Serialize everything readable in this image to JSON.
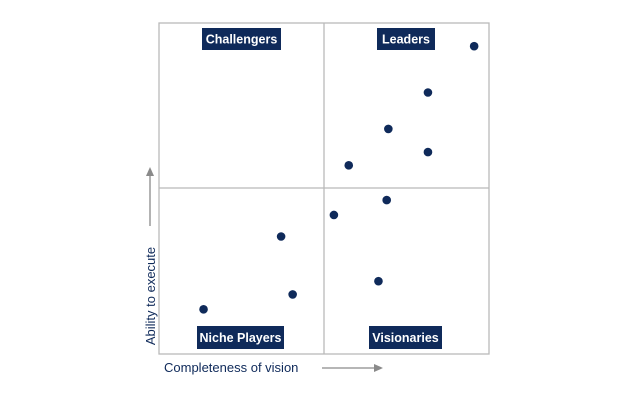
{
  "colors": {
    "navy": "#0f2a5a",
    "grid": "#b9b9b9",
    "arrow": "#8a8a8a",
    "label_text": "#ffffff"
  },
  "chart_data": {
    "type": "scatter",
    "title": "",
    "xlabel": "Completeness of vision",
    "ylabel": "Ability to execute",
    "xlim": [
      0,
      1
    ],
    "ylim": [
      0,
      1
    ],
    "grid": "2x2 quadrants",
    "quadrants": [
      {
        "name": "Challengers",
        "position": "top-left"
      },
      {
        "name": "Leaders",
        "position": "top-right"
      },
      {
        "name": "Niche Players",
        "position": "bottom-left"
      },
      {
        "name": "Visionaries",
        "position": "bottom-right"
      }
    ],
    "points": [
      {
        "x": 0.955,
        "y": 0.93
      },
      {
        "x": 0.815,
        "y": 0.79
      },
      {
        "x": 0.695,
        "y": 0.68
      },
      {
        "x": 0.815,
        "y": 0.61
      },
      {
        "x": 0.575,
        "y": 0.57
      },
      {
        "x": 0.69,
        "y": 0.465
      },
      {
        "x": 0.53,
        "y": 0.42
      },
      {
        "x": 0.37,
        "y": 0.355
      },
      {
        "x": 0.405,
        "y": 0.18
      },
      {
        "x": 0.665,
        "y": 0.22
      },
      {
        "x": 0.135,
        "y": 0.135
      }
    ]
  }
}
